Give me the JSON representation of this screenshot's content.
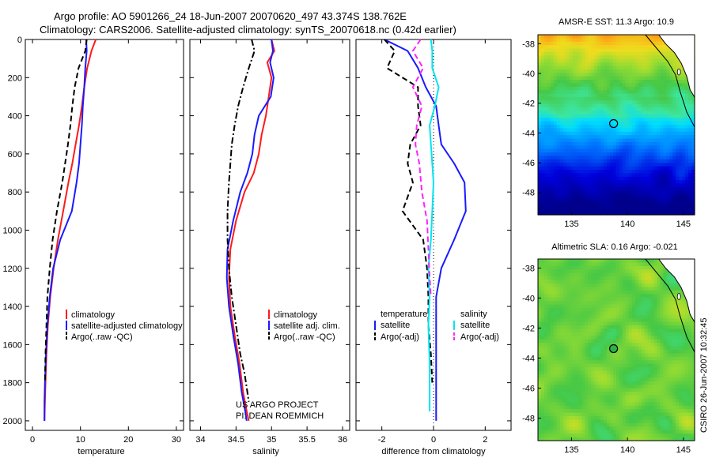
{
  "header": {
    "line1": "Argo profile: AO 5901266_24 18-Jun-2007 20070620_497 43.374S 138.762E",
    "line2": "Climatology: CARS2006. Satellite-adjusted climatology: synTS_20070618.nc (0.42d earlier)"
  },
  "credit": {
    "line1": "US ARGO PROJECT",
    "line2": "PI: DEAN ROEMMICH"
  },
  "stamp": "CSIRO 26-Jun-2007 10:32:45",
  "colors": {
    "climatology": "#ff1a1a",
    "satellite": "#1a1aff",
    "argo": "#000000",
    "satellite_salinity": "#00e5f0",
    "argo_salinity": "#ff22ff"
  },
  "chart_data": [
    {
      "type": "line",
      "panel": "temperature",
      "xlabel": "temperature",
      "xlim": [
        -1.5,
        31.5
      ],
      "xticks": [
        "0",
        "10",
        "20",
        "30"
      ],
      "ylim": [
        0,
        2050
      ],
      "yticks": [
        "0",
        "200",
        "400",
        "600",
        "800",
        "1000",
        "1200",
        "1400",
        "1600",
        "1800",
        "2000"
      ],
      "y_inverted": true,
      "legend": [
        "climatology",
        "satellite-adjusted climatology",
        "Argo(..raw -QC)"
      ],
      "series": [
        {
          "name": "climatology",
          "color": "#ff1a1a",
          "dash": "solid",
          "x": [
            13.2,
            12.3,
            11.4,
            10.8,
            10.3,
            9.7,
            9.0,
            8.3,
            7.5,
            6.4,
            5.3,
            4.4,
            3.7,
            3.2,
            2.9,
            2.7,
            2.6,
            2.5
          ],
          "y": [
            0,
            60,
            150,
            250,
            350,
            450,
            550,
            650,
            750,
            900,
            1050,
            1200,
            1350,
            1500,
            1650,
            1800,
            1900,
            2000
          ]
        },
        {
          "name": "satellite-adjusted climatology",
          "color": "#1a1aff",
          "dash": "solid",
          "x": [
            11.2,
            11.3,
            11.0,
            10.8,
            10.5,
            10.3,
            10.0,
            9.7,
            9.2,
            8.2,
            5.8,
            4.3,
            3.6,
            3.1,
            2.8,
            2.6,
            2.5,
            2.5
          ],
          "y": [
            0,
            60,
            150,
            250,
            350,
            450,
            550,
            650,
            750,
            900,
            1050,
            1200,
            1350,
            1500,
            1650,
            1800,
            1900,
            2000
          ]
        },
        {
          "name": "Argo(..raw -QC)",
          "color": "#000000",
          "dash": "dashed",
          "x": [
            11.3,
            11.0,
            9.6,
            8.8,
            8.3,
            7.9,
            7.4,
            6.8,
            6.2,
            5.1,
            4.2,
            3.6,
            3.1,
            2.9,
            2.7,
            2.6
          ],
          "y": [
            0,
            60,
            150,
            250,
            350,
            450,
            550,
            650,
            750,
            900,
            1050,
            1200,
            1350,
            1500,
            1650,
            1800
          ]
        }
      ]
    },
    {
      "type": "line",
      "panel": "salinity",
      "xlabel": "salinity",
      "xlim": [
        33.85,
        36.1
      ],
      "xticks": [
        "34",
        "34.5",
        "35",
        "35.5",
        "36"
      ],
      "ylim": [
        0,
        2050
      ],
      "y_inverted": true,
      "legend": [
        "climatology",
        "satellite adj. clim.",
        "Argo(..raw -QC)"
      ],
      "series": [
        {
          "name": "climatology",
          "color": "#ff1a1a",
          "dash": "solid",
          "x": [
            35.0,
            35.04,
            34.94,
            35.0,
            34.96,
            34.92,
            34.86,
            34.82,
            34.75,
            34.62,
            34.5,
            34.42,
            34.4,
            34.42,
            34.48,
            34.55,
            34.6,
            34.65,
            34.68
          ],
          "y": [
            0,
            60,
            120,
            200,
            300,
            400,
            500,
            600,
            700,
            800,
            950,
            1100,
            1250,
            1400,
            1550,
            1700,
            1850,
            1950,
            2000
          ]
        },
        {
          "name": "satellite adj. clim.",
          "color": "#1a1aff",
          "dash": "solid",
          "x": [
            35.0,
            35.02,
            34.98,
            35.03,
            34.99,
            34.82,
            34.76,
            34.73,
            34.66,
            34.56,
            34.46,
            34.38,
            34.37,
            34.4,
            34.46,
            34.53,
            34.58,
            34.63,
            34.65
          ],
          "y": [
            0,
            60,
            120,
            200,
            300,
            400,
            500,
            600,
            700,
            800,
            950,
            1100,
            1250,
            1400,
            1550,
            1700,
            1850,
            1950,
            2000
          ]
        },
        {
          "name": "Argo(..raw -QC)",
          "color": "#000000",
          "dash": "dashdot",
          "x": [
            34.72,
            34.76,
            34.68,
            34.6,
            34.53,
            34.48,
            34.44,
            34.42,
            34.4,
            34.38,
            34.38,
            34.4,
            34.44,
            34.5,
            34.56,
            34.62,
            34.66,
            34.68
          ],
          "y": [
            0,
            60,
            150,
            250,
            350,
            450,
            550,
            650,
            750,
            900,
            1050,
            1200,
            1350,
            1500,
            1650,
            1750,
            1850,
            1900
          ]
        }
      ]
    },
    {
      "type": "line",
      "panel": "difference",
      "xlabel": "difference from climatology",
      "xlim": [
        -3.0,
        3.0
      ],
      "xticks": [
        "-2",
        "0",
        "2"
      ],
      "ylim": [
        0,
        2050
      ],
      "y_inverted": true,
      "legend_groups": [
        {
          "title": "temperature",
          "entries": [
            "satellite",
            "Argo(-adj)"
          ]
        },
        {
          "title": "salinity",
          "entries": [
            "satellite",
            "Argo(-adj)"
          ]
        }
      ],
      "series": [
        {
          "name": "temperature satellite",
          "color": "#1a1aff",
          "dash": "solid",
          "x": [
            -1.9,
            -1.0,
            -0.6,
            -0.3,
            0.1,
            0.2,
            0.3,
            0.8,
            1.2,
            1.25,
            0.8,
            0.3,
            0.1,
            0.1,
            0.1,
            0.1,
            0.1
          ],
          "y": [
            0,
            60,
            150,
            250,
            350,
            450,
            550,
            650,
            750,
            900,
            1050,
            1200,
            1350,
            1500,
            1650,
            1800,
            2000
          ]
        },
        {
          "name": "temperature Argo(-adj)",
          "color": "#000000",
          "dash": "dashed",
          "x": [
            -1.9,
            -1.5,
            -1.8,
            -0.6,
            -0.6,
            -0.5,
            -0.9,
            -1.0,
            -0.8,
            -1.2,
            -0.4,
            -0.25,
            -0.2,
            -0.2,
            -0.1,
            -0.05
          ],
          "y": [
            0,
            60,
            150,
            250,
            350,
            450,
            550,
            650,
            750,
            900,
            1050,
            1200,
            1350,
            1500,
            1650,
            1800
          ]
        },
        {
          "name": "salinity satellite",
          "color": "#00e5f0",
          "dash": "solid",
          "x": [
            -0.1,
            -0.05,
            -0.05,
            0.2,
            0.05,
            -0.15,
            -0.1,
            -0.05,
            0.0,
            -0.05,
            -0.1,
            -0.2,
            -0.15,
            -0.2,
            -0.15,
            -0.15
          ],
          "y": [
            0,
            60,
            150,
            250,
            350,
            450,
            550,
            650,
            750,
            900,
            1050,
            1200,
            1350,
            1500,
            1700,
            1950
          ]
        },
        {
          "name": "salinity Argo(-adj)",
          "color": "#ff22ff",
          "dash": "dashed",
          "x": [
            -0.5,
            -0.8,
            -0.4,
            -0.8,
            -0.45,
            -0.65,
            -0.7,
            -0.55,
            -0.45,
            -0.25,
            -0.2,
            -0.15,
            -0.1
          ],
          "y": [
            0,
            60,
            150,
            250,
            350,
            450,
            550,
            650,
            800,
            950,
            1100,
            1250,
            1350
          ]
        }
      ]
    },
    {
      "type": "heatmap",
      "panel": "map-sst",
      "title": "AMSR-E SST: 11.3 Argo: 10.9",
      "xlim": [
        132,
        146
      ],
      "ylim": [
        -49.5,
        -37.4
      ],
      "xticks": [
        "135",
        "140",
        "145"
      ],
      "yticks": [
        "-38",
        "-40",
        "-42",
        "-44",
        "-46",
        "-48"
      ],
      "float_marker": {
        "lon": 138.76,
        "lat": -43.37,
        "filled": false
      }
    },
    {
      "type": "heatmap",
      "panel": "map-sla",
      "title": "Altimetric SLA: 0.16 Argo: -0.021",
      "xlim": [
        132,
        146
      ],
      "ylim": [
        -49.5,
        -37.4
      ],
      "xticks": [
        "135",
        "140",
        "145"
      ],
      "yticks": [
        "-38",
        "-40",
        "-42",
        "-44",
        "-46",
        "-48"
      ],
      "float_marker": {
        "lon": 138.76,
        "lat": -43.37,
        "filled": true
      }
    }
  ]
}
